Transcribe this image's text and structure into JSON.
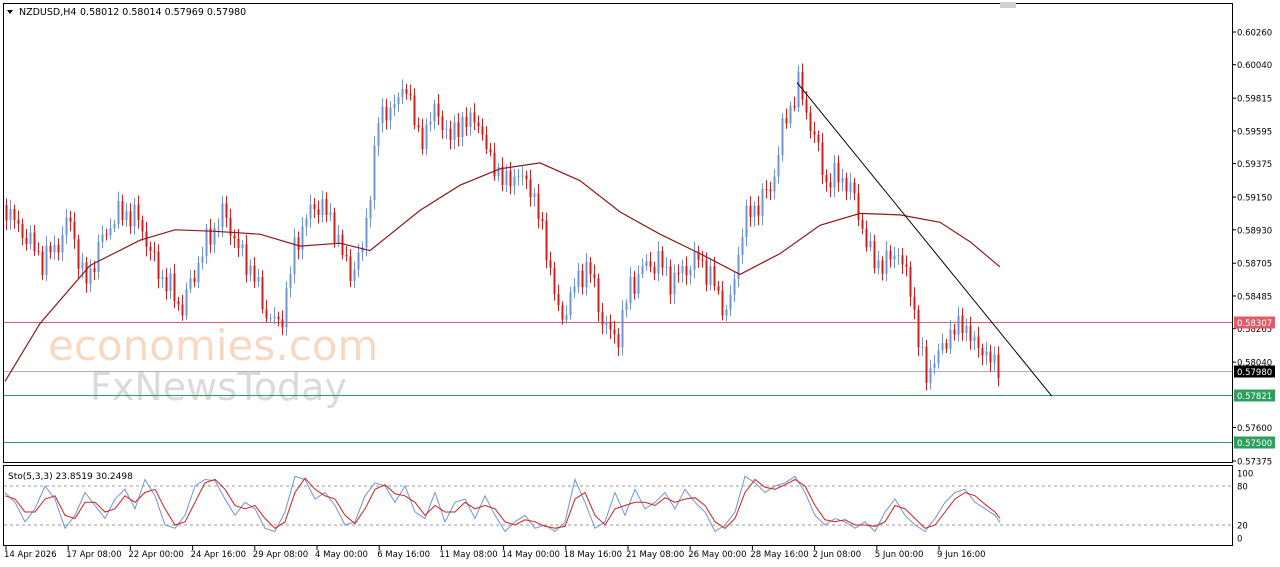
{
  "header": {
    "dropdown_icon": "triangle-down-icon",
    "symbol": "NZDUSD,H4",
    "ohlc": "0.58012 0.58014 0.57969 0.57980"
  },
  "watermark": {
    "line1": "economies.com",
    "line2": "FxNewsToday"
  },
  "oscillator": {
    "label": "Sto(5,3,3) 23.8519 30.2498",
    "levels": [
      100,
      80,
      20,
      0
    ],
    "level_labels": [
      "100",
      "80",
      "20",
      "0"
    ]
  },
  "colors": {
    "bull": "#6f95d8",
    "bear": "#d11f1f",
    "ma": "#8b1a1a",
    "resistance": "#e05c6a",
    "support": "#2e9e5e",
    "trendline": "#000000",
    "stoch_main": "#6f95d8",
    "stoch_signal": "#d11f1f"
  },
  "chart_data": {
    "type": "candlestick",
    "price_scale": {
      "ylim": [
        0.57375,
        0.6026
      ],
      "ticks": [
        "0.60260",
        "0.60040",
        "0.59815",
        "0.59595",
        "0.59375",
        "0.59150",
        "0.58930",
        "0.58705",
        "0.58485",
        "0.58265",
        "0.58040",
        "0.57600",
        "0.57375"
      ]
    },
    "time_axis": [
      "14 Apr 2026",
      "17 Apr 08:00",
      "22 Apr 00:00",
      "24 Apr 16:00",
      "29 Apr 08:00",
      "4 May 00:00",
      "6 May 16:00",
      "11 May 08:00",
      "14 May 00:00",
      "18 May 16:00",
      "21 May 08:00",
      "26 May 00:00",
      "28 May 16:00",
      "2 Jun 08:00",
      "5 Jun 00:00",
      "9 Jun 16:00"
    ],
    "price_path": [
      [
        0,
        0.5916
      ],
      [
        14,
        0.5898
      ],
      [
        28,
        0.5886
      ],
      [
        42,
        0.5872
      ],
      [
        56,
        0.5882
      ],
      [
        70,
        0.59
      ],
      [
        84,
        0.5855
      ],
      [
        98,
        0.588
      ],
      [
        112,
        0.59
      ],
      [
        126,
        0.5905
      ],
      [
        140,
        0.5898
      ],
      [
        154,
        0.587
      ],
      [
        168,
        0.5855
      ],
      [
        182,
        0.584
      ],
      [
        196,
        0.5868
      ],
      [
        210,
        0.589
      ],
      [
        224,
        0.5905
      ],
      [
        238,
        0.588
      ],
      [
        252,
        0.5865
      ],
      [
        266,
        0.5836
      ],
      [
        280,
        0.5828
      ],
      [
        294,
        0.588
      ],
      [
        308,
        0.5905
      ],
      [
        322,
        0.591
      ],
      [
        336,
        0.589
      ],
      [
        350,
        0.5862
      ],
      [
        364,
        0.5885
      ],
      [
        378,
        0.5968
      ],
      [
        392,
        0.5975
      ],
      [
        406,
        0.599
      ],
      [
        420,
        0.595
      ],
      [
        434,
        0.5975
      ],
      [
        448,
        0.5955
      ],
      [
        462,
        0.5965
      ],
      [
        476,
        0.5968
      ],
      [
        490,
        0.594
      ],
      [
        504,
        0.5925
      ],
      [
        518,
        0.593
      ],
      [
        532,
        0.592
      ],
      [
        546,
        0.588
      ],
      [
        560,
        0.583
      ],
      [
        574,
        0.5855
      ],
      [
        588,
        0.587
      ],
      [
        602,
        0.5832
      ],
      [
        616,
        0.5818
      ],
      [
        630,
        0.5855
      ],
      [
        644,
        0.5868
      ],
      [
        658,
        0.5872
      ],
      [
        672,
        0.5858
      ],
      [
        686,
        0.5868
      ],
      [
        700,
        0.5874
      ],
      [
        714,
        0.5855
      ],
      [
        728,
        0.5835
      ],
      [
        742,
        0.5895
      ],
      [
        756,
        0.591
      ],
      [
        770,
        0.592
      ],
      [
        784,
        0.5965
      ],
      [
        798,
        0.599
      ],
      [
        812,
        0.596
      ],
      [
        826,
        0.5925
      ],
      [
        840,
        0.593
      ],
      [
        854,
        0.5915
      ],
      [
        868,
        0.5878
      ],
      [
        882,
        0.5868
      ],
      [
        896,
        0.588
      ],
      [
        910,
        0.5855
      ],
      [
        918,
        0.5818
      ],
      [
        926,
        0.5795
      ],
      [
        940,
        0.5812
      ],
      [
        952,
        0.5825
      ],
      [
        962,
        0.583
      ],
      [
        976,
        0.5815
      ],
      [
        988,
        0.5808
      ],
      [
        1000,
        0.5798
      ]
    ],
    "moving_average": [
      [
        5,
        0.5791
      ],
      [
        40,
        0.583
      ],
      [
        90,
        0.5869
      ],
      [
        140,
        0.5886
      ],
      [
        175,
        0.5893
      ],
      [
        215,
        0.5892
      ],
      [
        260,
        0.589
      ],
      [
        300,
        0.5882
      ],
      [
        340,
        0.5884
      ],
      [
        370,
        0.5879
      ],
      [
        420,
        0.5906
      ],
      [
        460,
        0.5923
      ],
      [
        500,
        0.5934
      ],
      [
        540,
        0.5938
      ],
      [
        580,
        0.5926
      ],
      [
        620,
        0.5905
      ],
      [
        660,
        0.589
      ],
      [
        700,
        0.5877
      ],
      [
        740,
        0.5863
      ],
      [
        780,
        0.5877
      ],
      [
        820,
        0.5896
      ],
      [
        860,
        0.5904
      ],
      [
        900,
        0.5903
      ],
      [
        940,
        0.5898
      ],
      [
        970,
        0.5885
      ],
      [
        1000,
        0.5868
      ]
    ],
    "horizontal_levels": [
      {
        "label": "0.58307",
        "value": 0.58307,
        "role": "resistance"
      },
      {
        "label": "0.57980",
        "value": 0.5798,
        "role": "current"
      },
      {
        "label": "0.57821",
        "value": 0.57821,
        "role": "support"
      },
      {
        "label": "0.57500",
        "value": 0.575,
        "role": "support"
      }
    ],
    "trendline": {
      "from": [
        797,
        0.5992
      ],
      "to": [
        1052,
        0.5781
      ]
    },
    "stochastic": {
      "main": [
        [
          5,
          70
        ],
        [
          15,
          55
        ],
        [
          25,
          25
        ],
        [
          35,
          45
        ],
        [
          45,
          80
        ],
        [
          55,
          60
        ],
        [
          65,
          15
        ],
        [
          75,
          35
        ],
        [
          85,
          70
        ],
        [
          95,
          50
        ],
        [
          105,
          30
        ],
        [
          115,
          60
        ],
        [
          125,
          75
        ],
        [
          135,
          45
        ],
        [
          145,
          90
        ],
        [
          155,
          65
        ],
        [
          165,
          20
        ],
        [
          175,
          15
        ],
        [
          185,
          35
        ],
        [
          195,
          80
        ],
        [
          205,
          90
        ],
        [
          215,
          88
        ],
        [
          225,
          60
        ],
        [
          235,
          35
        ],
        [
          245,
          55
        ],
        [
          255,
          45
        ],
        [
          265,
          15
        ],
        [
          275,
          10
        ],
        [
          285,
          40
        ],
        [
          295,
          95
        ],
        [
          305,
          90
        ],
        [
          315,
          60
        ],
        [
          325,
          70
        ],
        [
          335,
          50
        ],
        [
          345,
          20
        ],
        [
          355,
          25
        ],
        [
          365,
          65
        ],
        [
          375,
          85
        ],
        [
          385,
          80
        ],
        [
          395,
          55
        ],
        [
          405,
          80
        ],
        [
          415,
          40
        ],
        [
          425,
          30
        ],
        [
          435,
          70
        ],
        [
          445,
          25
        ],
        [
          455,
          55
        ],
        [
          465,
          60
        ],
        [
          475,
          30
        ],
        [
          485,
          65
        ],
        [
          495,
          35
        ],
        [
          505,
          10
        ],
        [
          515,
          25
        ],
        [
          525,
          35
        ],
        [
          535,
          15
        ],
        [
          545,
          20
        ],
        [
          555,
          10
        ],
        [
          565,
          25
        ],
        [
          575,
          90
        ],
        [
          585,
          55
        ],
        [
          595,
          15
        ],
        [
          605,
          25
        ],
        [
          615,
          70
        ],
        [
          625,
          35
        ],
        [
          635,
          75
        ],
        [
          645,
          45
        ],
        [
          655,
          55
        ],
        [
          665,
          70
        ],
        [
          675,
          45
        ],
        [
          685,
          75
        ],
        [
          695,
          55
        ],
        [
          705,
          40
        ],
        [
          715,
          10
        ],
        [
          725,
          20
        ],
        [
          735,
          40
        ],
        [
          745,
          95
        ],
        [
          755,
          85
        ],
        [
          765,
          70
        ],
        [
          775,
          80
        ],
        [
          785,
          85
        ],
        [
          795,
          95
        ],
        [
          805,
          70
        ],
        [
          815,
          35
        ],
        [
          825,
          20
        ],
        [
          835,
          30
        ],
        [
          845,
          25
        ],
        [
          855,
          15
        ],
        [
          865,
          25
        ],
        [
          875,
          10
        ],
        [
          885,
          40
        ],
        [
          895,
          60
        ],
        [
          905,
          35
        ],
        [
          915,
          20
        ],
        [
          925,
          10
        ],
        [
          935,
          30
        ],
        [
          945,
          55
        ],
        [
          955,
          70
        ],
        [
          965,
          75
        ],
        [
          975,
          55
        ],
        [
          985,
          45
        ],
        [
          995,
          35
        ],
        [
          1000,
          24
        ]
      ],
      "signal": [
        [
          5,
          65
        ],
        [
          15,
          60
        ],
        [
          25,
          40
        ],
        [
          35,
          40
        ],
        [
          45,
          60
        ],
        [
          55,
          65
        ],
        [
          65,
          35
        ],
        [
          75,
          30
        ],
        [
          85,
          55
        ],
        [
          95,
          55
        ],
        [
          105,
          40
        ],
        [
          115,
          45
        ],
        [
          125,
          65
        ],
        [
          135,
          55
        ],
        [
          145,
          70
        ],
        [
          155,
          75
        ],
        [
          165,
          45
        ],
        [
          175,
          20
        ],
        [
          185,
          25
        ],
        [
          195,
          55
        ],
        [
          205,
          85
        ],
        [
          215,
          90
        ],
        [
          225,
          75
        ],
        [
          235,
          50
        ],
        [
          245,
          45
        ],
        [
          255,
          50
        ],
        [
          265,
          30
        ],
        [
          275,
          15
        ],
        [
          285,
          25
        ],
        [
          295,
          70
        ],
        [
          305,
          92
        ],
        [
          315,
          75
        ],
        [
          325,
          65
        ],
        [
          335,
          60
        ],
        [
          345,
          35
        ],
        [
          355,
          22
        ],
        [
          365,
          45
        ],
        [
          375,
          75
        ],
        [
          385,
          82
        ],
        [
          395,
          68
        ],
        [
          405,
          65
        ],
        [
          415,
          55
        ],
        [
          425,
          35
        ],
        [
          435,
          50
        ],
        [
          445,
          40
        ],
        [
          455,
          40
        ],
        [
          465,
          55
        ],
        [
          475,
          45
        ],
        [
          485,
          50
        ],
        [
          495,
          45
        ],
        [
          505,
          25
        ],
        [
          515,
          20
        ],
        [
          525,
          28
        ],
        [
          535,
          25
        ],
        [
          545,
          18
        ],
        [
          555,
          15
        ],
        [
          565,
          18
        ],
        [
          575,
          60
        ],
        [
          585,
          70
        ],
        [
          595,
          35
        ],
        [
          605,
          20
        ],
        [
          615,
          45
        ],
        [
          625,
          50
        ],
        [
          635,
          55
        ],
        [
          645,
          55
        ],
        [
          655,
          50
        ],
        [
          665,
          62
        ],
        [
          675,
          55
        ],
        [
          685,
          60
        ],
        [
          695,
          62
        ],
        [
          705,
          50
        ],
        [
          715,
          25
        ],
        [
          725,
          15
        ],
        [
          735,
          30
        ],
        [
          745,
          70
        ],
        [
          755,
          90
        ],
        [
          765,
          78
        ],
        [
          775,
          75
        ],
        [
          785,
          82
        ],
        [
          795,
          90
        ],
        [
          805,
          80
        ],
        [
          815,
          50
        ],
        [
          825,
          28
        ],
        [
          835,
          25
        ],
        [
          845,
          28
        ],
        [
          855,
          20
        ],
        [
          865,
          20
        ],
        [
          875,
          18
        ],
        [
          885,
          25
        ],
        [
          895,
          50
        ],
        [
          905,
          45
        ],
        [
          915,
          30
        ],
        [
          925,
          15
        ],
        [
          935,
          20
        ],
        [
          945,
          40
        ],
        [
          955,
          60
        ],
        [
          965,
          70
        ],
        [
          975,
          65
        ],
        [
          985,
          52
        ],
        [
          995,
          40
        ],
        [
          1000,
          30
        ]
      ]
    }
  }
}
